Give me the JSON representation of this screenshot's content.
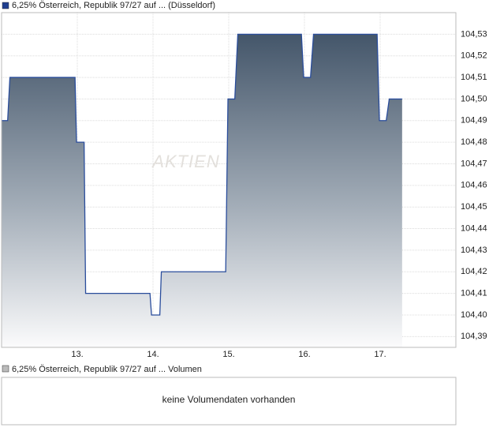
{
  "chart_data": {
    "type": "line",
    "watermark": "AKTIEN",
    "series": [
      {
        "name": "6,25% Österreich, Republik 97/27 auf ... (Düsseldorf)",
        "color": "#2a4d9c",
        "x": [
          12.0,
          12.08,
          12.11,
          12.97,
          12.99,
          13.09,
          13.11,
          13.96,
          13.98,
          14.09,
          14.11,
          14.96,
          14.99,
          15.08,
          15.12,
          15.96,
          15.99,
          16.08,
          16.12,
          16.96,
          16.99,
          17.08,
          17.12,
          17.29
        ],
        "values": [
          104.49,
          104.49,
          104.51,
          104.51,
          104.48,
          104.48,
          104.41,
          104.41,
          104.4,
          104.4,
          104.42,
          104.42,
          104.5,
          104.5,
          104.53,
          104.53,
          104.51,
          104.51,
          104.53,
          104.53,
          104.49,
          104.49,
          104.5,
          104.5
        ]
      }
    ],
    "xlim": [
      12,
      18
    ],
    "xticks": [
      {
        "value": 13,
        "label": "13."
      },
      {
        "value": 14,
        "label": "14."
      },
      {
        "value": 15,
        "label": "15."
      },
      {
        "value": 16,
        "label": "16."
      },
      {
        "value": 17,
        "label": "17."
      }
    ],
    "ylim": [
      104.385,
      104.54
    ],
    "yticks": [
      {
        "value": 104.39,
        "label": "104,39"
      },
      {
        "value": 104.4,
        "label": "104,40"
      },
      {
        "value": 104.41,
        "label": "104,41"
      },
      {
        "value": 104.42,
        "label": "104,42"
      },
      {
        "value": 104.43,
        "label": "104,43"
      },
      {
        "value": 104.44,
        "label": "104,44"
      },
      {
        "value": 104.45,
        "label": "104,45"
      },
      {
        "value": 104.46,
        "label": "104,46"
      },
      {
        "value": 104.47,
        "label": "104,47"
      },
      {
        "value": 104.48,
        "label": "104,48"
      },
      {
        "value": 104.49,
        "label": "104,49"
      },
      {
        "value": 104.5,
        "label": "104,50"
      },
      {
        "value": 104.51,
        "label": "104,51"
      },
      {
        "value": 104.52,
        "label": "104,52"
      },
      {
        "value": 104.53,
        "label": "104,53"
      }
    ],
    "grid": true
  },
  "volume_panel": {
    "legend": "6,25% Österreich, Republik 97/27 auf ... Volumen",
    "message": "keine Volumendaten vorhanden"
  }
}
